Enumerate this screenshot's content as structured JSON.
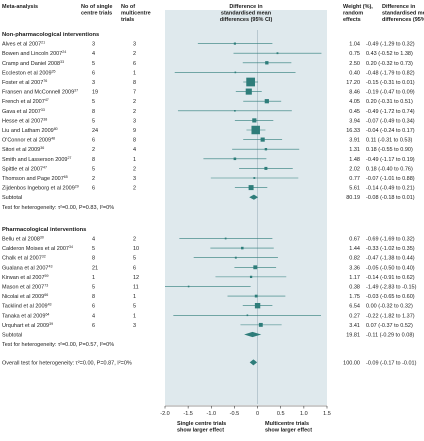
{
  "headers": {
    "meta": "Meta-analysis",
    "single": "No of single\ncentre trials",
    "multi": "No of\nmulticentre\ntrials",
    "diff": "Difference in\nstandardised mean\ndifferences (95% CI)",
    "weight": "Weight (%),\nrandom\neffects",
    "ci": "Difference in\nstandardised mean\ndifferences (95% CI)"
  },
  "colors": {
    "band": "#dfe9ed",
    "marker": "#2e7d7a",
    "line": "#2e7d7a",
    "text": "#1a1a1a",
    "accent_text": "#1a1a1a"
  },
  "chart_data": {
    "type": "forest",
    "xlim": [
      -2.0,
      1.5
    ],
    "ticks": [
      -2.0,
      -1.5,
      -1.0,
      -0.5,
      0,
      0.5,
      1.0,
      1.5
    ],
    "tick_labels": [
      "-2.0",
      "-1.5",
      "-1.0",
      "-0.5",
      "0",
      "0.5",
      "1.0",
      "1.5"
    ],
    "xlabel_left": "Single centre trials\nshow larger effect",
    "xlabel_right": "Multicentre trials\nshow larger effect",
    "groups": [
      {
        "title": "Non-pharmacological interventions",
        "studies": [
          {
            "label": "Alves et al 2007",
            "ref": "21",
            "single": "3",
            "multi": "3",
            "est": -0.49,
            "lo": -1.29,
            "hi": 0.32,
            "weight": "1.04",
            "ci": "-0.49 (-1.29 to 0.32)"
          },
          {
            "label": "Bowen and Lincoln 2007",
            "ref": "24",
            "single": "4",
            "multi": "2",
            "est": 0.43,
            "lo": -0.52,
            "hi": 1.38,
            "weight": "0.75",
            "ci": "0.43 (-0.52 to 1.38)"
          },
          {
            "label": "Cramp and Daniel 2008",
            "ref": "33",
            "single": "5",
            "multi": "6",
            "est": 0.2,
            "lo": -0.32,
            "hi": 0.73,
            "weight": "2.50",
            "ci": "0.20 (-0.32 to 0.73)"
          },
          {
            "label": "Eccleston et al 2009",
            "ref": "35",
            "single": "6",
            "multi": "1",
            "est": -0.48,
            "lo": -1.79,
            "hi": 0.82,
            "weight": "0.40",
            "ci": "-0.48 (-1.79 to 0.82)"
          },
          {
            "label": "Foster et al 2007",
            "ref": "76",
            "single": "3",
            "multi": "8",
            "est": -0.15,
            "lo": -0.31,
            "hi": 0.01,
            "weight": "17.20",
            "ci": "-0.15 (-0.31 to 0.01)"
          },
          {
            "label": "Fransen and McConnell 2009",
            "ref": "37",
            "single": "19",
            "multi": "7",
            "est": -0.19,
            "lo": -0.47,
            "hi": 0.09,
            "weight": "8.46",
            "ci": "-0.19 (-0.47 to 0.09)"
          },
          {
            "label": "French et al 2007",
            "ref": "47",
            "single": "5",
            "multi": "2",
            "est": 0.2,
            "lo": -0.31,
            "hi": 0.51,
            "weight": "4.05",
            "ci": "0.20 (-0.31 to 0.51)"
          },
          {
            "label": "Gava et al 2007",
            "ref": "33",
            "single": "8",
            "multi": "2",
            "est": -0.49,
            "lo": -1.72,
            "hi": 0.74,
            "weight": "0.45",
            "ci": "-0.49 (-1.72 to 0.74)"
          },
          {
            "label": "Hesse et al 2007",
            "ref": "38",
            "single": "5",
            "multi": "3",
            "est": -0.07,
            "lo": -0.49,
            "hi": 0.34,
            "weight": "3.94",
            "ci": "-0.07 (-0.49 to 0.34)"
          },
          {
            "label": "Liu and Latham 2009",
            "ref": "80",
            "single": "24",
            "multi": "9",
            "est": -0.04,
            "lo": -0.24,
            "hi": 0.17,
            "weight": "16.33",
            "ci": "-0.04 (-0.24 to 0.17)"
          },
          {
            "label": "O'Connor et al 2009",
            "ref": "48",
            "single": "6",
            "multi": "8",
            "est": 0.11,
            "lo": -0.31,
            "hi": 0.53,
            "weight": "3.91",
            "ci": "0.11 (-0.31 to 0.53)"
          },
          {
            "label": "Sitori et al 2009",
            "ref": "36",
            "single": "2",
            "multi": "4",
            "est": 0.18,
            "lo": -0.55,
            "hi": 0.9,
            "weight": "1.31",
            "ci": "0.18 (-0.55 to 0.90)"
          },
          {
            "label": "Smith and Lasserson 2009",
            "ref": "27",
            "single": "8",
            "multi": "1",
            "est": -0.49,
            "lo": -1.17,
            "hi": 0.19,
            "weight": "1.48",
            "ci": "-0.49 (-1.17 to 0.19)"
          },
          {
            "label": "Spittle et al 2007",
            "ref": "47",
            "single": "5",
            "multi": "2",
            "est": 0.18,
            "lo": -0.4,
            "hi": 0.76,
            "weight": "2.02",
            "ci": "0.18 (-0.40 to 0.76)"
          },
          {
            "label": "Thomson and Page 2007",
            "ref": "65",
            "single": "2",
            "multi": "3",
            "est": -0.07,
            "lo": -1.01,
            "hi": 0.88,
            "weight": "0.77",
            "ci": "-0.07 (-1.01 to 0.88)"
          },
          {
            "label": "Zijdenbos Ingeborg et al 2009",
            "ref": "29",
            "single": "6",
            "multi": "2",
            "est": -0.14,
            "lo": -0.49,
            "hi": 0.21,
            "weight": "5.61",
            "ci": "-0.14 (-0.49 to 0.21)"
          }
        ],
        "subtotal": {
          "label": "Subtotal",
          "est": -0.08,
          "lo": -0.18,
          "hi": 0.01,
          "weight": "80.19",
          "ci": "-0.08 (-0.18 to 0.01)"
        },
        "heterogeneity": "Test for heterogeneity: τ²=0.00, P=0.83, I²=0%"
      },
      {
        "title": "Pharmacological interventions",
        "studies": [
          {
            "label": "Bellu et al 2008",
            "ref": "30",
            "single": "4",
            "multi": "2",
            "est": -0.69,
            "lo": -1.69,
            "hi": 0.32,
            "weight": "0.67",
            "ci": "-0.69 (-1.69 to 0.32)"
          },
          {
            "label": "Calderon Moises et al 2007",
            "ref": "34",
            "single": "5",
            "multi": "10",
            "est": -0.33,
            "lo": -1.02,
            "hi": 0.35,
            "weight": "1.44",
            "ci": "-0.33 (-1.02 to 0.35)"
          },
          {
            "label": "Chalk et al 2007",
            "ref": "32",
            "single": "8",
            "multi": "5",
            "est": -0.47,
            "lo": -1.38,
            "hi": 0.44,
            "weight": "0.82",
            "ci": "-0.47 (-1.38 to 0.44)"
          },
          {
            "label": "Gualana et al 2007",
            "ref": "43",
            "single": "21",
            "multi": "6",
            "est": -0.05,
            "lo": -0.5,
            "hi": 0.4,
            "weight": "3.36",
            "ci": "-0.05 (-0.50 to 0.40)"
          },
          {
            "label": "Kirwan et al 2007",
            "ref": "59",
            "single": "1",
            "multi": "12",
            "est": -0.14,
            "lo": -0.91,
            "hi": 0.62,
            "weight": "1.17",
            "ci": "-0.14 (-0.91 to 0.62)"
          },
          {
            "label": "Mason et al 2007",
            "ref": "73",
            "single": "5",
            "multi": "11",
            "est": -1.49,
            "lo": -2.83,
            "hi": -0.15,
            "weight": "0.38",
            "ci": "-1.49 (-2.83 to -0.15)"
          },
          {
            "label": "Nicolai et al 2009",
            "ref": "66",
            "single": "8",
            "multi": "1",
            "est": -0.03,
            "lo": -0.65,
            "hi": 0.6,
            "weight": "1.75",
            "ci": "-0.03 (-0.65 to 0.60)"
          },
          {
            "label": "Tacklind et al 2009",
            "ref": "43",
            "single": "6",
            "multi": "5",
            "est": 0.0,
            "lo": -0.32,
            "hi": 0.32,
            "weight": "6.54",
            "ci": "0.00 (-0.32 to 0.32)"
          },
          {
            "label": "Tanaka et al 2009",
            "ref": "64",
            "single": "4",
            "multi": "1",
            "est": -0.22,
            "lo": -1.82,
            "hi": 1.37,
            "weight": "0.27",
            "ci": "-0.22 (-1.82 to 1.37)"
          },
          {
            "label": "Urquhart et al 2009",
            "ref": "39",
            "single": "6",
            "multi": "3",
            "est": 0.07,
            "lo": -0.37,
            "hi": 0.52,
            "weight": "3.41",
            "ci": "0.07 (-0.37 to 0.52)"
          }
        ],
        "subtotal": {
          "label": "Subtotal",
          "est": -0.11,
          "lo": -0.29,
          "hi": 0.08,
          "weight": "19.81",
          "ci": "-0.11 (-0.29 to 0.08)"
        },
        "heterogeneity": "Test for heterogeneity: τ²=0.00, P=0.57, I²=0%"
      }
    ],
    "overall": {
      "label": "Overall test for heterogeneity: τ²=0.00, P=0.87, I²=0%",
      "est": -0.09,
      "lo": -0.17,
      "hi": -0.01,
      "weight": "100.00",
      "ci": "-0.09 (-0.17 to -0.01)"
    }
  }
}
